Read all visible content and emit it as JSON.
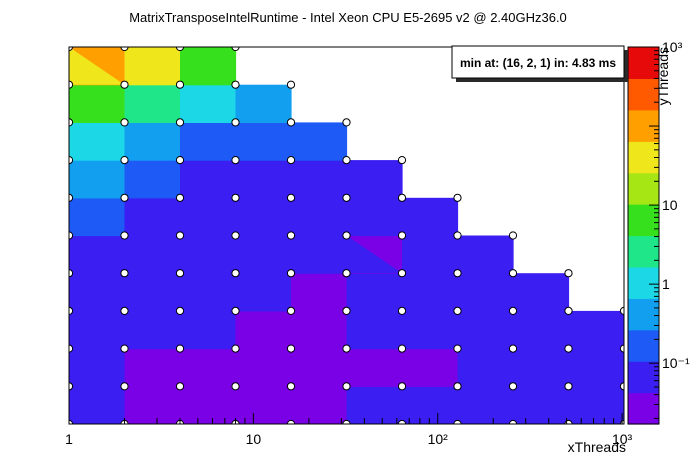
{
  "chart_data": {
    "type": "heatmap",
    "title": "MatrixTransposeIntelRuntime - Intel Xeon CPU E5-2695 v2 @ 2.40GHz36.0",
    "xlabel": "xThreads",
    "ylabel": "yThreads",
    "x_scale": "log2",
    "y_scale": "log2",
    "xlim": [
      1,
      1024
    ],
    "ylim": [
      1,
      1024
    ],
    "z_scale": "log",
    "zlim": [
      0.017,
      1000
    ],
    "x_ticks": [
      {
        "value": 1,
        "label": "1"
      },
      {
        "value": 10,
        "label": "10"
      },
      {
        "value": 100,
        "label": "10²"
      },
      {
        "value": 1000,
        "label": "10³"
      }
    ],
    "colorbar_ticks": [
      {
        "value": 0.1,
        "label": "10⁻¹"
      },
      {
        "value": 1,
        "label": "1"
      },
      {
        "value": 10,
        "label": "10"
      },
      {
        "value": 1000,
        "label": "10³"
      }
    ],
    "x_values": [
      1,
      2,
      4,
      8,
      16,
      32,
      64,
      128,
      256,
      512,
      1024
    ],
    "y_values": [
      1,
      2,
      4,
      8,
      16,
      32,
      64,
      128,
      256,
      512,
      1024
    ],
    "z_rows": [
      [
        0.11,
        0.05,
        0.035,
        0.05,
        0.05,
        0.07,
        0.06,
        0.07,
        0.09,
        0.11,
        0.13
      ],
      [
        0.13,
        0.05,
        0.03,
        0.02,
        0.02,
        0.03,
        0.035,
        0.04,
        0.05,
        0.06,
        0.08
      ],
      [
        0.15,
        0.05,
        0.04,
        0.05,
        0.04,
        0.05,
        0.05,
        0.04,
        0.06,
        0.05,
        0.08
      ],
      [
        0.12,
        0.06,
        0.04,
        0.05,
        0.03,
        0.04,
        0.05,
        0.05,
        0.06,
        0.04,
        0.07
      ],
      [
        0.1,
        0.07,
        0.05,
        0.05,
        0.05,
        0.04,
        0.05,
        0.04,
        0.06,
        0.07,
        null
      ],
      [
        0.15,
        0.1,
        0.06,
        0.08,
        0.05,
        0.04,
        0.04,
        0.05,
        0.06,
        null,
        null
      ],
      [
        0.35,
        0.15,
        0.05,
        0.06,
        0.09,
        0.05,
        0.07,
        0.07,
        null,
        null,
        null
      ],
      [
        0.8,
        0.5,
        0.05,
        0.12,
        0.1,
        0.1,
        0.12,
        null,
        null,
        null,
        null
      ],
      [
        2.5,
        1.8,
        0.7,
        0.3,
        0.2,
        0.12,
        null,
        null,
        null,
        null,
        null
      ],
      [
        20,
        8,
        3,
        0.6,
        0.2,
        null,
        null,
        null,
        null,
        null,
        null
      ],
      [
        1000,
        800,
        200,
        30,
        null,
        null,
        null,
        null,
        null,
        null,
        null
      ]
    ],
    "legend_placement": "top-right",
    "annotation": "min at: (16, 2, 1) in: 4.83 ms"
  }
}
